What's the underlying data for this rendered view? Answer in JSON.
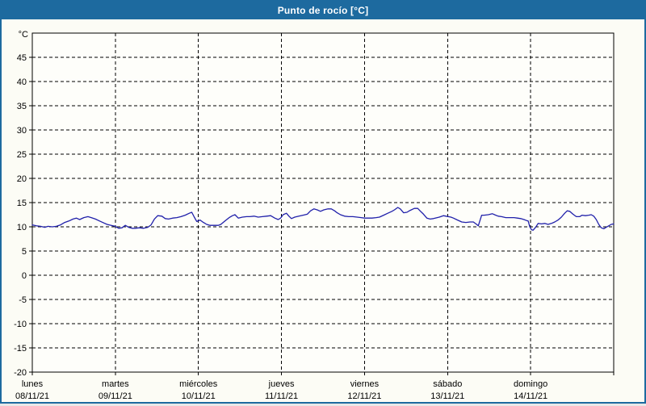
{
  "window": {
    "title": "Punto de rocío [°C]"
  },
  "colors": {
    "frame_accent": "#1d6a9f",
    "title_text": "#ffffff",
    "panel_bg": "#fcfcf5",
    "plot_bg": "#fefefa",
    "line": "#2020aa",
    "grid": "#000000",
    "axis": "#000000"
  },
  "chart_data": {
    "type": "line",
    "title": "Punto de rocío [°C]",
    "y_unit_label": "°C",
    "ylim": [
      -20,
      50
    ],
    "ytick_min": -20,
    "ytick_max": 45,
    "ytick_step": 5,
    "grid": "dashed",
    "legend": "none",
    "x_axis_days": [
      {
        "name": "lunes",
        "date": "08/11/21"
      },
      {
        "name": "martes",
        "date": "09/11/21"
      },
      {
        "name": "miércoles",
        "date": "10/11/21"
      },
      {
        "name": "jueves",
        "date": "11/11/21"
      },
      {
        "name": "viernes",
        "date": "12/11/21"
      },
      {
        "name": "sábado",
        "date": "13/11/21"
      },
      {
        "name": "domingo",
        "date": "14/11/21"
      }
    ],
    "series": [
      {
        "name": "Punto de rocío",
        "x_unit": "days_from_2021-11-08",
        "points": [
          [
            0.0,
            10.4
          ],
          [
            0.05,
            10.2
          ],
          [
            0.1,
            10.1
          ],
          [
            0.15,
            9.9
          ],
          [
            0.19,
            10.1
          ],
          [
            0.24,
            10.0
          ],
          [
            0.29,
            10.1
          ],
          [
            0.34,
            10.4
          ],
          [
            0.39,
            10.9
          ],
          [
            0.44,
            11.2
          ],
          [
            0.49,
            11.6
          ],
          [
            0.53,
            11.8
          ],
          [
            0.57,
            11.5
          ],
          [
            0.62,
            11.9
          ],
          [
            0.67,
            12.1
          ],
          [
            0.71,
            11.9
          ],
          [
            0.76,
            11.6
          ],
          [
            0.81,
            11.2
          ],
          [
            0.86,
            10.8
          ],
          [
            0.9,
            10.5
          ],
          [
            0.95,
            10.3
          ],
          [
            1.0,
            10.1
          ],
          [
            1.04,
            9.7
          ],
          [
            1.08,
            9.8
          ],
          [
            1.12,
            10.3
          ],
          [
            1.16,
            9.9
          ],
          [
            1.2,
            9.7
          ],
          [
            1.24,
            9.7
          ],
          [
            1.29,
            9.8
          ],
          [
            1.34,
            9.7
          ],
          [
            1.39,
            9.9
          ],
          [
            1.43,
            10.4
          ],
          [
            1.47,
            11.6
          ],
          [
            1.51,
            12.3
          ],
          [
            1.56,
            12.2
          ],
          [
            1.6,
            11.7
          ],
          [
            1.64,
            11.6
          ],
          [
            1.69,
            11.8
          ],
          [
            1.74,
            11.9
          ],
          [
            1.79,
            12.1
          ],
          [
            1.84,
            12.4
          ],
          [
            1.89,
            12.8
          ],
          [
            1.92,
            13.0
          ],
          [
            1.95,
            12.0
          ],
          [
            1.98,
            11.1
          ],
          [
            2.02,
            11.4
          ],
          [
            2.06,
            10.9
          ],
          [
            2.1,
            10.5
          ],
          [
            2.14,
            10.3
          ],
          [
            2.19,
            10.3
          ],
          [
            2.24,
            10.3
          ],
          [
            2.27,
            10.5
          ],
          [
            2.32,
            11.2
          ],
          [
            2.37,
            11.9
          ],
          [
            2.41,
            12.3
          ],
          [
            2.44,
            12.5
          ],
          [
            2.48,
            11.8
          ],
          [
            2.53,
            12.0
          ],
          [
            2.58,
            12.1
          ],
          [
            2.62,
            12.1
          ],
          [
            2.67,
            12.2
          ],
          [
            2.72,
            12.0
          ],
          [
            2.77,
            12.1
          ],
          [
            2.82,
            12.2
          ],
          [
            2.87,
            12.3
          ],
          [
            2.92,
            11.8
          ],
          [
            2.96,
            11.5
          ],
          [
            2.99,
            11.8
          ],
          [
            3.02,
            12.5
          ],
          [
            3.06,
            12.8
          ],
          [
            3.09,
            12.2
          ],
          [
            3.12,
            11.7
          ],
          [
            3.16,
            12.0
          ],
          [
            3.21,
            12.2
          ],
          [
            3.26,
            12.4
          ],
          [
            3.31,
            12.6
          ],
          [
            3.35,
            13.3
          ],
          [
            3.39,
            13.7
          ],
          [
            3.43,
            13.5
          ],
          [
            3.47,
            13.2
          ],
          [
            3.51,
            13.5
          ],
          [
            3.56,
            13.7
          ],
          [
            3.6,
            13.7
          ],
          [
            3.64,
            13.3
          ],
          [
            3.67,
            12.9
          ],
          [
            3.71,
            12.5
          ],
          [
            3.76,
            12.2
          ],
          [
            3.81,
            12.1
          ],
          [
            3.86,
            12.1
          ],
          [
            3.91,
            12.0
          ],
          [
            3.96,
            11.9
          ],
          [
            4.0,
            11.8
          ],
          [
            4.04,
            11.8
          ],
          [
            4.09,
            11.8
          ],
          [
            4.14,
            11.9
          ],
          [
            4.18,
            12.0
          ],
          [
            4.23,
            12.4
          ],
          [
            4.28,
            12.8
          ],
          [
            4.33,
            13.2
          ],
          [
            4.36,
            13.5
          ],
          [
            4.4,
            14.0
          ],
          [
            4.43,
            13.7
          ],
          [
            4.47,
            12.9
          ],
          [
            4.51,
            13.0
          ],
          [
            4.55,
            13.4
          ],
          [
            4.6,
            13.8
          ],
          [
            4.64,
            13.8
          ],
          [
            4.68,
            13.1
          ],
          [
            4.71,
            12.6
          ],
          [
            4.75,
            11.8
          ],
          [
            4.79,
            11.6
          ],
          [
            4.83,
            11.7
          ],
          [
            4.9,
            12.0
          ],
          [
            4.95,
            12.3
          ],
          [
            4.98,
            12.2
          ],
          [
            5.04,
            12.0
          ],
          [
            5.07,
            11.8
          ],
          [
            5.12,
            11.4
          ],
          [
            5.17,
            11.0
          ],
          [
            5.22,
            10.9
          ],
          [
            5.27,
            11.0
          ],
          [
            5.31,
            11.0
          ],
          [
            5.35,
            10.5
          ],
          [
            5.37,
            10.2
          ],
          [
            5.39,
            11.3
          ],
          [
            5.41,
            12.4
          ],
          [
            5.44,
            12.4
          ],
          [
            5.49,
            12.5
          ],
          [
            5.54,
            12.7
          ],
          [
            5.58,
            12.4
          ],
          [
            5.61,
            12.2
          ],
          [
            5.65,
            12.1
          ],
          [
            5.7,
            11.9
          ],
          [
            5.75,
            11.9
          ],
          [
            5.8,
            11.9
          ],
          [
            5.84,
            11.8
          ],
          [
            5.88,
            11.7
          ],
          [
            5.92,
            11.5
          ],
          [
            5.95,
            11.3
          ],
          [
            5.97,
            11.2
          ],
          [
            5.99,
            10.0
          ],
          [
            6.01,
            9.4
          ],
          [
            6.03,
            9.3
          ],
          [
            6.06,
            9.9
          ],
          [
            6.09,
            10.7
          ],
          [
            6.13,
            10.6
          ],
          [
            6.17,
            10.7
          ],
          [
            6.21,
            10.5
          ],
          [
            6.25,
            10.7
          ],
          [
            6.29,
            11.0
          ],
          [
            6.33,
            11.4
          ],
          [
            6.37,
            12.0
          ],
          [
            6.41,
            12.8
          ],
          [
            6.44,
            13.3
          ],
          [
            6.47,
            13.2
          ],
          [
            6.51,
            12.6
          ],
          [
            6.55,
            12.1
          ],
          [
            6.59,
            12.1
          ],
          [
            6.62,
            12.4
          ],
          [
            6.66,
            12.3
          ],
          [
            6.7,
            12.4
          ],
          [
            6.73,
            12.5
          ],
          [
            6.76,
            12.2
          ],
          [
            6.79,
            11.5
          ],
          [
            6.82,
            10.5
          ],
          [
            6.85,
            9.8
          ],
          [
            6.88,
            9.6
          ],
          [
            6.91,
            9.9
          ],
          [
            6.94,
            10.2
          ],
          [
            6.97,
            10.5
          ],
          [
            7.0,
            10.6
          ]
        ]
      }
    ]
  }
}
